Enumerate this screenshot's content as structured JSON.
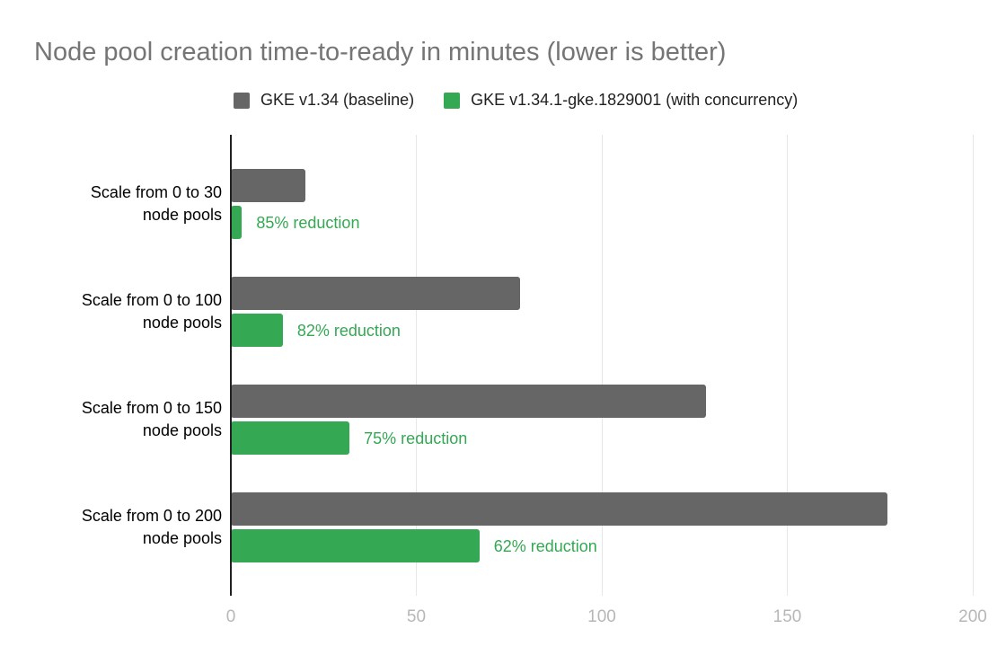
{
  "title": "Node pool creation time-to-ready in minutes (lower is better)",
  "colors": {
    "background": "#ffffff",
    "title_gray": "#757575",
    "baseline_gray": "#666666",
    "concurrency_green": "#34a853",
    "category_label": "#000000",
    "legend_text": "#212121",
    "tick_label_gray": "#b7b7b7",
    "gridline": "#e6e6e6",
    "axis_line": "#212121"
  },
  "legend": [
    {
      "label": "GKE v1.34 (baseline)",
      "color_key": "baseline_gray"
    },
    {
      "label": "GKE v1.34.1-gke.1829001 (with concurrency)",
      "color_key": "concurrency_green"
    }
  ],
  "chart_data": {
    "type": "bar",
    "orientation": "horizontal",
    "title": "Node pool creation time-to-ready in minutes (lower is better)",
    "unit": "minutes",
    "grid": true,
    "legend_position": "top",
    "categories": [
      {
        "line1": "Scale from 0 to 30",
        "line2": "node pools"
      },
      {
        "line1": "Scale from 0 to 100",
        "line2": "node pools"
      },
      {
        "line1": "Scale from 0 to 150",
        "line2": "node pools"
      },
      {
        "line1": "Scale from 0 to 200",
        "line2": "node pools"
      }
    ],
    "series": [
      {
        "name": "GKE v1.34 (baseline)",
        "color_key": "baseline_gray",
        "values": [
          20,
          78,
          128,
          177
        ]
      },
      {
        "name": "GKE v1.34.1-gke.1829001 (with concurrency)",
        "color_key": "concurrency_green",
        "values": [
          3,
          14,
          32,
          67
        ]
      }
    ],
    "annotations": [
      "85% reduction",
      "82% reduction",
      "75% reduction",
      "62% reduction"
    ],
    "x_axis": {
      "min": 0,
      "max": 200,
      "ticks": [
        0,
        50,
        100,
        150,
        200
      ]
    }
  }
}
